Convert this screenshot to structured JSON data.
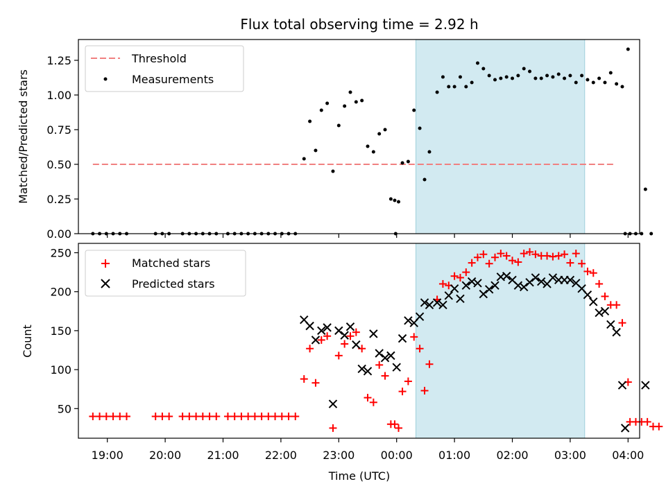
{
  "title": "Flux total observing time = 2.92 h",
  "x_tick_labels": [
    "19:00",
    "20:00",
    "21:00",
    "22:00",
    "23:00",
    "00:00",
    "01:00",
    "02:00",
    "03:00",
    "04:00"
  ],
  "x_label": "Time (UTC)",
  "highlight_color": "#add8e6",
  "highlight_window": [
    "00:20",
    "03:15"
  ],
  "chart_data": [
    {
      "type": "scatter",
      "panel": "top",
      "ylabel": "Matched/Predicted stars",
      "x_range": [
        "18:30",
        "04:12"
      ],
      "ylim": [
        0,
        1.4
      ],
      "y_ticks": [
        "0.00",
        "0.25",
        "0.50",
        "0.75",
        "1.00",
        "1.25"
      ],
      "legend_placement": "top-left",
      "threshold": {
        "name": "Threshold",
        "value": 0.5,
        "color": "#f08080",
        "x": [
          "18:45",
          "03:45"
        ]
      },
      "series": [
        {
          "name": "Measurements",
          "color": "#000000",
          "points": [
            [
              "18:45",
              0
            ],
            [
              "18:52",
              0
            ],
            [
              "18:59",
              0
            ],
            [
              "19:06",
              0
            ],
            [
              "19:13",
              0
            ],
            [
              "19:20",
              0
            ],
            [
              "19:50",
              0
            ],
            [
              "19:57",
              0
            ],
            [
              "20:04",
              0
            ],
            [
              "20:18",
              0
            ],
            [
              "20:25",
              0
            ],
            [
              "20:32",
              0
            ],
            [
              "20:39",
              0
            ],
            [
              "20:46",
              0
            ],
            [
              "20:53",
              0
            ],
            [
              "21:05",
              0
            ],
            [
              "21:12",
              0
            ],
            [
              "21:19",
              0
            ],
            [
              "21:26",
              0
            ],
            [
              "21:33",
              0
            ],
            [
              "21:40",
              0
            ],
            [
              "21:47",
              0
            ],
            [
              "21:54",
              0
            ],
            [
              "22:01",
              0
            ],
            [
              "22:08",
              0
            ],
            [
              "22:15",
              0
            ],
            [
              "22:24",
              0.54
            ],
            [
              "22:30",
              0.81
            ],
            [
              "22:36",
              0.6
            ],
            [
              "22:42",
              0.89
            ],
            [
              "22:48",
              0.94
            ],
            [
              "22:54",
              0.45
            ],
            [
              "23:00",
              0.78
            ],
            [
              "23:06",
              0.92
            ],
            [
              "23:12",
              1.02
            ],
            [
              "23:18",
              0.95
            ],
            [
              "23:24",
              0.96
            ],
            [
              "23:30",
              0.63
            ],
            [
              "23:36",
              0.59
            ],
            [
              "23:42",
              0.72
            ],
            [
              "23:48",
              0.75
            ],
            [
              "23:54",
              0.25
            ],
            [
              "23:58",
              0.24
            ],
            [
              "00:02",
              0.23
            ],
            [
              "23:59",
              0
            ],
            [
              "00:06",
              0.51
            ],
            [
              "00:12",
              0.52
            ],
            [
              "00:18",
              0.89
            ],
            [
              "00:24",
              0.76
            ],
            [
              "00:29",
              0.39
            ],
            [
              "00:34",
              0.59
            ],
            [
              "00:42",
              1.02
            ],
            [
              "00:48",
              1.13
            ],
            [
              "00:54",
              1.06
            ],
            [
              "01:00",
              1.06
            ],
            [
              "01:06",
              1.13
            ],
            [
              "01:12",
              1.06
            ],
            [
              "01:18",
              1.09
            ],
            [
              "01:24",
              1.23
            ],
            [
              "01:30",
              1.19
            ],
            [
              "01:36",
              1.14
            ],
            [
              "01:42",
              1.11
            ],
            [
              "01:48",
              1.12
            ],
            [
              "01:54",
              1.13
            ],
            [
              "02:00",
              1.12
            ],
            [
              "02:06",
              1.14
            ],
            [
              "02:12",
              1.19
            ],
            [
              "02:18",
              1.17
            ],
            [
              "02:24",
              1.12
            ],
            [
              "02:30",
              1.12
            ],
            [
              "02:36",
              1.14
            ],
            [
              "02:42",
              1.13
            ],
            [
              "02:48",
              1.15
            ],
            [
              "02:54",
              1.12
            ],
            [
              "03:00",
              1.14
            ],
            [
              "03:06",
              1.09
            ],
            [
              "03:12",
              1.14
            ],
            [
              "03:18",
              1.11
            ],
            [
              "03:24",
              1.09
            ],
            [
              "03:30",
              1.12
            ],
            [
              "03:36",
              1.09
            ],
            [
              "03:42",
              1.16
            ],
            [
              "03:48",
              1.08
            ],
            [
              "03:54",
              1.06
            ],
            [
              "04:00",
              1.33
            ],
            [
              "03:57",
              0
            ],
            [
              "04:02",
              0
            ],
            [
              "04:08",
              0
            ],
            [
              "04:14",
              0
            ],
            [
              "04:18",
              0.32
            ],
            [
              "04:24",
              0
            ]
          ]
        }
      ]
    },
    {
      "type": "scatter",
      "panel": "bottom",
      "ylabel": "Count",
      "x_range": [
        "18:30",
        "04:12"
      ],
      "ylim": [
        12,
        262
      ],
      "y_ticks": [
        "50",
        "100",
        "150",
        "200",
        "250"
      ],
      "legend_placement": "top-left",
      "series": [
        {
          "name": "Matched stars",
          "marker": "plus",
          "color": "#ff0000",
          "points": [
            [
              "18:45",
              40
            ],
            [
              "18:52",
              40
            ],
            [
              "18:59",
              40
            ],
            [
              "19:06",
              40
            ],
            [
              "19:13",
              40
            ],
            [
              "19:20",
              40
            ],
            [
              "19:50",
              40
            ],
            [
              "19:57",
              40
            ],
            [
              "20:04",
              40
            ],
            [
              "20:18",
              40
            ],
            [
              "20:25",
              40
            ],
            [
              "20:32",
              40
            ],
            [
              "20:39",
              40
            ],
            [
              "20:46",
              40
            ],
            [
              "20:53",
              40
            ],
            [
              "21:05",
              40
            ],
            [
              "21:12",
              40
            ],
            [
              "21:19",
              40
            ],
            [
              "21:26",
              40
            ],
            [
              "21:33",
              40
            ],
            [
              "21:40",
              40
            ],
            [
              "21:47",
              40
            ],
            [
              "21:54",
              40
            ],
            [
              "22:01",
              40
            ],
            [
              "22:08",
              40
            ],
            [
              "22:15",
              40
            ],
            [
              "22:24",
              88
            ],
            [
              "22:30",
              127
            ],
            [
              "22:36",
              83
            ],
            [
              "22:42",
              138
            ],
            [
              "22:48",
              143
            ],
            [
              "22:54",
              25
            ],
            [
              "23:00",
              118
            ],
            [
              "23:06",
              133
            ],
            [
              "23:12",
              143
            ],
            [
              "23:18",
              148
            ],
            [
              "23:24",
              127
            ],
            [
              "23:30",
              64
            ],
            [
              "23:36",
              58
            ],
            [
              "23:42",
              106
            ],
            [
              "23:48",
              92
            ],
            [
              "23:54",
              30
            ],
            [
              "23:58",
              30
            ],
            [
              "00:02",
              25
            ],
            [
              "00:06",
              72
            ],
            [
              "00:12",
              85
            ],
            [
              "00:18",
              142
            ],
            [
              "00:24",
              127
            ],
            [
              "00:29",
              73
            ],
            [
              "00:34",
              107
            ],
            [
              "00:42",
              190
            ],
            [
              "00:48",
              210
            ],
            [
              "00:54",
              208
            ],
            [
              "01:00",
              220
            ],
            [
              "01:06",
              218
            ],
            [
              "01:12",
              225
            ],
            [
              "01:18",
              237
            ],
            [
              "01:24",
              244
            ],
            [
              "01:30",
              248
            ],
            [
              "01:36",
              236
            ],
            [
              "01:42",
              244
            ],
            [
              "01:48",
              249
            ],
            [
              "01:54",
              246
            ],
            [
              "02:00",
              240
            ],
            [
              "02:06",
              238
            ],
            [
              "02:12",
              249
            ],
            [
              "02:18",
              251
            ],
            [
              "02:24",
              248
            ],
            [
              "02:30",
              246
            ],
            [
              "02:36",
              246
            ],
            [
              "02:42",
              245
            ],
            [
              "02:48",
              246
            ],
            [
              "02:54",
              248
            ],
            [
              "03:00",
              237
            ],
            [
              "03:06",
              249
            ],
            [
              "03:12",
              236
            ],
            [
              "03:18",
              226
            ],
            [
              "03:24",
              224
            ],
            [
              "03:30",
              210
            ],
            [
              "03:36",
              194
            ],
            [
              "03:42",
              183
            ],
            [
              "03:48",
              183
            ],
            [
              "03:54",
              160
            ],
            [
              "04:00",
              84
            ],
            [
              "04:02",
              33
            ],
            [
              "04:08",
              33
            ],
            [
              "04:14",
              33
            ],
            [
              "04:20",
              33
            ],
            [
              "04:26",
              27
            ],
            [
              "04:32",
              27
            ]
          ]
        },
        {
          "name": "Predicted stars",
          "marker": "x",
          "color": "#000000",
          "points": [
            [
              "22:24",
              164
            ],
            [
              "22:30",
              156
            ],
            [
              "22:36",
              138
            ],
            [
              "22:42",
              150
            ],
            [
              "22:48",
              154
            ],
            [
              "22:54",
              56
            ],
            [
              "23:00",
              150
            ],
            [
              "23:06",
              144
            ],
            [
              "23:12",
              155
            ],
            [
              "23:18",
              132
            ],
            [
              "23:24",
              101
            ],
            [
              "23:30",
              98
            ],
            [
              "23:36",
              146
            ],
            [
              "23:42",
              121
            ],
            [
              "23:48",
              115
            ],
            [
              "23:54",
              118
            ],
            [
              "00:00",
              103
            ],
            [
              "00:06",
              140
            ],
            [
              "00:12",
              163
            ],
            [
              "00:18",
              160
            ],
            [
              "00:24",
              168
            ],
            [
              "00:29",
              186
            ],
            [
              "00:34",
              183
            ],
            [
              "00:42",
              186
            ],
            [
              "00:48",
              183
            ],
            [
              "00:54",
              195
            ],
            [
              "01:00",
              204
            ],
            [
              "01:06",
              191
            ],
            [
              "01:12",
              208
            ],
            [
              "01:18",
              213
            ],
            [
              "01:24",
              211
            ],
            [
              "01:30",
              197
            ],
            [
              "01:36",
              203
            ],
            [
              "01:42",
              208
            ],
            [
              "01:48",
              219
            ],
            [
              "01:54",
              220
            ],
            [
              "02:00",
              215
            ],
            [
              "02:06",
              208
            ],
            [
              "02:12",
              206
            ],
            [
              "02:18",
              212
            ],
            [
              "02:24",
              218
            ],
            [
              "02:30",
              213
            ],
            [
              "02:36",
              210
            ],
            [
              "02:42",
              218
            ],
            [
              "02:48",
              215
            ],
            [
              "02:54",
              215
            ],
            [
              "03:00",
              215
            ],
            [
              "03:06",
              211
            ],
            [
              "03:12",
              204
            ],
            [
              "03:18",
              196
            ],
            [
              "03:24",
              187
            ],
            [
              "03:30",
              173
            ],
            [
              "03:36",
              175
            ],
            [
              "03:42",
              158
            ],
            [
              "03:48",
              148
            ],
            [
              "03:54",
              80
            ],
            [
              "03:57",
              25
            ],
            [
              "04:18",
              80
            ]
          ]
        }
      ]
    }
  ]
}
